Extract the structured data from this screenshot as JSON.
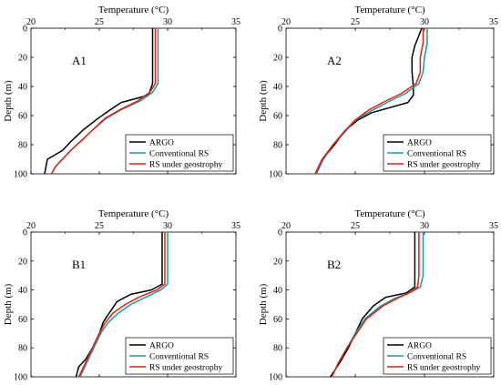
{
  "chart_data": [
    {
      "type": "line",
      "panel_label": "A1",
      "xlabel": "Temperature (°C)",
      "ylabel": "Depth (m)",
      "xlim": [
        20,
        35
      ],
      "ylim": [
        0,
        100
      ],
      "x_ticks": [
        "20",
        "25",
        "30",
        "35"
      ],
      "y_ticks": [
        "0",
        "20",
        "40",
        "60",
        "80",
        "100"
      ],
      "y_inverted": true,
      "legend_position": "bottom-right",
      "series": [
        {
          "name": "ARGO",
          "color": "#000000",
          "points": [
            [
              28.9,
              0
            ],
            [
              28.9,
              20
            ],
            [
              28.9,
              38
            ],
            [
              28.6,
              46
            ],
            [
              26.6,
              51
            ],
            [
              25.8,
              56
            ],
            [
              24.9,
              62
            ],
            [
              23.8,
              70
            ],
            [
              22.9,
              78
            ],
            [
              22.3,
              84
            ],
            [
              21.2,
              90
            ],
            [
              21.1,
              95
            ],
            [
              21.0,
              100
            ]
          ]
        },
        {
          "name": "Conventional RS",
          "color": "#1a9aa0",
          "points": [
            [
              29.3,
              0
            ],
            [
              29.3,
              20
            ],
            [
              29.3,
              38
            ],
            [
              28.9,
              44
            ],
            [
              28.0,
              50
            ],
            [
              26.6,
              56
            ],
            [
              25.5,
              62
            ],
            [
              24.5,
              70
            ],
            [
              23.6,
              78
            ],
            [
              22.9,
              84
            ],
            [
              22.3,
              90
            ],
            [
              21.8,
              95
            ],
            [
              21.5,
              100
            ]
          ]
        },
        {
          "name": "RS under geostrophy",
          "color": "#e02010",
          "points": [
            [
              29.1,
              0
            ],
            [
              29.1,
              20
            ],
            [
              29.1,
              38
            ],
            [
              28.7,
              44
            ],
            [
              27.8,
              50
            ],
            [
              26.5,
              56
            ],
            [
              25.4,
              62
            ],
            [
              24.5,
              70
            ],
            [
              23.6,
              78
            ],
            [
              22.9,
              84
            ],
            [
              22.3,
              90
            ],
            [
              21.8,
              95
            ],
            [
              21.5,
              100
            ]
          ]
        }
      ]
    },
    {
      "type": "line",
      "panel_label": "A2",
      "xlabel": "Temperature (°C)",
      "ylabel": "Depth (m)",
      "xlim": [
        20,
        35
      ],
      "ylim": [
        0,
        100
      ],
      "x_ticks": [
        "20",
        "25",
        "30",
        "35"
      ],
      "y_ticks": [
        "0",
        "20",
        "40",
        "60",
        "80",
        "100"
      ],
      "y_inverted": true,
      "legend_position": "bottom-right",
      "series": [
        {
          "name": "ARGO",
          "color": "#000000",
          "points": [
            [
              29.8,
              0
            ],
            [
              29.6,
              5
            ],
            [
              29.3,
              12
            ],
            [
              29.1,
              20
            ],
            [
              29.1,
              30
            ],
            [
              29.2,
              40
            ],
            [
              29.2,
              46
            ],
            [
              28.8,
              51
            ],
            [
              26.2,
              58
            ],
            [
              25.2,
              63
            ],
            [
              24.3,
              70
            ],
            [
              23.5,
              80
            ],
            [
              22.9,
              87
            ],
            [
              22.3,
              96
            ],
            [
              22.2,
              100
            ]
          ]
        },
        {
          "name": "Conventional RS",
          "color": "#1a9aa0",
          "points": [
            [
              30.2,
              0
            ],
            [
              30.2,
              10
            ],
            [
              30.0,
              20
            ],
            [
              29.9,
              30
            ],
            [
              29.6,
              38
            ],
            [
              28.6,
              45
            ],
            [
              27.5,
              50
            ],
            [
              26.3,
              56
            ],
            [
              25.0,
              63
            ],
            [
              24.2,
              72
            ],
            [
              23.4,
              80
            ],
            [
              22.7,
              90
            ],
            [
              22.2,
              100
            ]
          ]
        },
        {
          "name": "RS under geostrophy",
          "color": "#e02010",
          "points": [
            [
              29.9,
              0
            ],
            [
              29.9,
              10
            ],
            [
              29.7,
              20
            ],
            [
              29.7,
              30
            ],
            [
              29.4,
              38
            ],
            [
              28.3,
              45
            ],
            [
              27.2,
              50
            ],
            [
              26.0,
              56
            ],
            [
              25.0,
              63
            ],
            [
              24.1,
              72
            ],
            [
              23.4,
              80
            ],
            [
              22.6,
              90
            ],
            [
              22.1,
              100
            ]
          ]
        }
      ]
    },
    {
      "type": "line",
      "panel_label": "B1",
      "xlabel": "Temperature (°C)",
      "ylabel": "Depth (m)",
      "xlim": [
        20,
        35
      ],
      "ylim": [
        0,
        100
      ],
      "x_ticks": [
        "20",
        "25",
        "30",
        "35"
      ],
      "y_ticks": [
        "0",
        "20",
        "40",
        "60",
        "80",
        "100"
      ],
      "y_inverted": true,
      "legend_position": "bottom-right",
      "series": [
        {
          "name": "ARGO",
          "color": "#000000",
          "points": [
            [
              29.6,
              0
            ],
            [
              29.6,
              20
            ],
            [
              29.6,
              36
            ],
            [
              28.8,
              40
            ],
            [
              27.3,
              43
            ],
            [
              26.3,
              48
            ],
            [
              25.8,
              55
            ],
            [
              25.3,
              62
            ],
            [
              25.0,
              70
            ],
            [
              24.5,
              80
            ],
            [
              24.0,
              88
            ],
            [
              23.5,
              93
            ],
            [
              23.3,
              100
            ]
          ]
        },
        {
          "name": "Conventional RS",
          "color": "#1a9aa0",
          "points": [
            [
              30.0,
              0
            ],
            [
              30.0,
              20
            ],
            [
              30.0,
              36
            ],
            [
              29.5,
              40
            ],
            [
              28.4,
              45
            ],
            [
              27.3,
              50
            ],
            [
              26.4,
              56
            ],
            [
              25.6,
              63
            ],
            [
              25.1,
              70
            ],
            [
              24.6,
              80
            ],
            [
              24.1,
              90
            ],
            [
              23.6,
              100
            ]
          ]
        },
        {
          "name": "RS under geostrophy",
          "color": "#e02010",
          "points": [
            [
              29.8,
              0
            ],
            [
              29.8,
              20
            ],
            [
              29.8,
              36
            ],
            [
              29.2,
              40
            ],
            [
              27.9,
              45
            ],
            [
              26.9,
              50
            ],
            [
              26.0,
              56
            ],
            [
              25.4,
              63
            ],
            [
              25.0,
              70
            ],
            [
              24.5,
              80
            ],
            [
              24.0,
              90
            ],
            [
              23.5,
              100
            ]
          ]
        }
      ]
    },
    {
      "type": "line",
      "panel_label": "B2",
      "xlabel": "Temperature (°C)",
      "ylabel": "Depth (m)",
      "xlim": [
        20,
        35
      ],
      "ylim": [
        0,
        100
      ],
      "x_ticks": [
        "20",
        "25",
        "30",
        "35"
      ],
      "y_ticks": [
        "0",
        "20",
        "40",
        "60",
        "80",
        "100"
      ],
      "y_inverted": true,
      "legend_position": "bottom-right",
      "series": [
        {
          "name": "ARGO",
          "color": "#000000",
          "points": [
            [
              29.3,
              0
            ],
            [
              29.3,
              20
            ],
            [
              29.3,
              38
            ],
            [
              28.7,
              42
            ],
            [
              27.2,
              45
            ],
            [
              26.3,
              51
            ],
            [
              25.5,
              60
            ],
            [
              25.0,
              70
            ],
            [
              24.5,
              80
            ],
            [
              23.9,
              90
            ],
            [
              23.2,
              100
            ]
          ]
        },
        {
          "name": "Conventional RS",
          "color": "#1a9aa0",
          "points": [
            [
              29.9,
              0
            ],
            [
              29.9,
              20
            ],
            [
              29.9,
              30
            ],
            [
              29.7,
              38
            ],
            [
              28.9,
              42
            ],
            [
              27.8,
              46
            ],
            [
              26.7,
              52
            ],
            [
              25.7,
              60
            ],
            [
              25.0,
              70
            ],
            [
              24.4,
              80
            ],
            [
              23.8,
              90
            ],
            [
              23.3,
              100
            ]
          ]
        },
        {
          "name": "RS under geostrophy",
          "color": "#e02010",
          "points": [
            [
              29.6,
              0
            ],
            [
              29.6,
              20
            ],
            [
              29.6,
              30
            ],
            [
              29.5,
              38
            ],
            [
              28.9,
              42
            ],
            [
              28.2,
              45
            ],
            [
              27.0,
              51
            ],
            [
              25.8,
              60
            ],
            [
              25.1,
              70
            ],
            [
              24.4,
              80
            ],
            [
              23.8,
              90
            ],
            [
              23.3,
              100
            ]
          ]
        }
      ]
    }
  ]
}
